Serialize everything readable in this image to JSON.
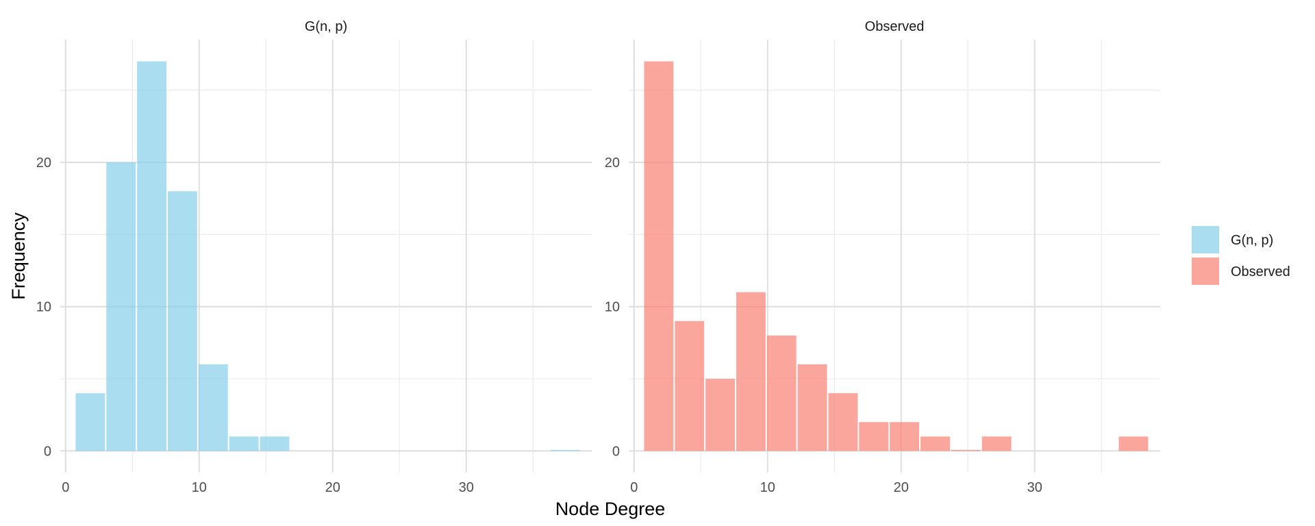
{
  "chart_data": {
    "type": "bar",
    "xlabel": "Node Degree",
    "ylabel": "Frequency",
    "bin_width": 2.3,
    "xlim": [
      -0.4,
      39.4
    ],
    "ylim": [
      -1.5,
      28.5
    ],
    "x_ticks": [
      0,
      10,
      20,
      30
    ],
    "y_ticks": [
      0,
      10,
      20
    ],
    "grid": true,
    "legend_position": "right",
    "panels": [
      {
        "title": "G(n, p)",
        "series": "G(n, p)",
        "color": "#87CEEB",
        "bins": [
          {
            "center": 1.85,
            "count": 4
          },
          {
            "center": 4.15,
            "count": 20
          },
          {
            "center": 6.45,
            "count": 27
          },
          {
            "center": 8.75,
            "count": 18
          },
          {
            "center": 11.05,
            "count": 6
          },
          {
            "center": 13.35,
            "count": 1
          },
          {
            "center": 15.65,
            "count": 1
          },
          {
            "center": 37.4,
            "count": 0
          }
        ]
      },
      {
        "title": "Observed",
        "series": "Observed",
        "color": "#FA8072",
        "bins": [
          {
            "center": 1.85,
            "count": 27
          },
          {
            "center": 4.15,
            "count": 9
          },
          {
            "center": 6.45,
            "count": 5
          },
          {
            "center": 8.75,
            "count": 11
          },
          {
            "center": 11.05,
            "count": 8
          },
          {
            "center": 13.35,
            "count": 6
          },
          {
            "center": 15.65,
            "count": 4
          },
          {
            "center": 17.95,
            "count": 2
          },
          {
            "center": 20.25,
            "count": 2
          },
          {
            "center": 22.55,
            "count": 1
          },
          {
            "center": 24.85,
            "count": 0
          },
          {
            "center": 27.15,
            "count": 1
          },
          {
            "center": 37.4,
            "count": 1
          }
        ]
      }
    ],
    "legend": [
      {
        "label": "G(n, p)",
        "color": "#87CEEB"
      },
      {
        "label": "Observed",
        "color": "#FA8072"
      }
    ]
  }
}
